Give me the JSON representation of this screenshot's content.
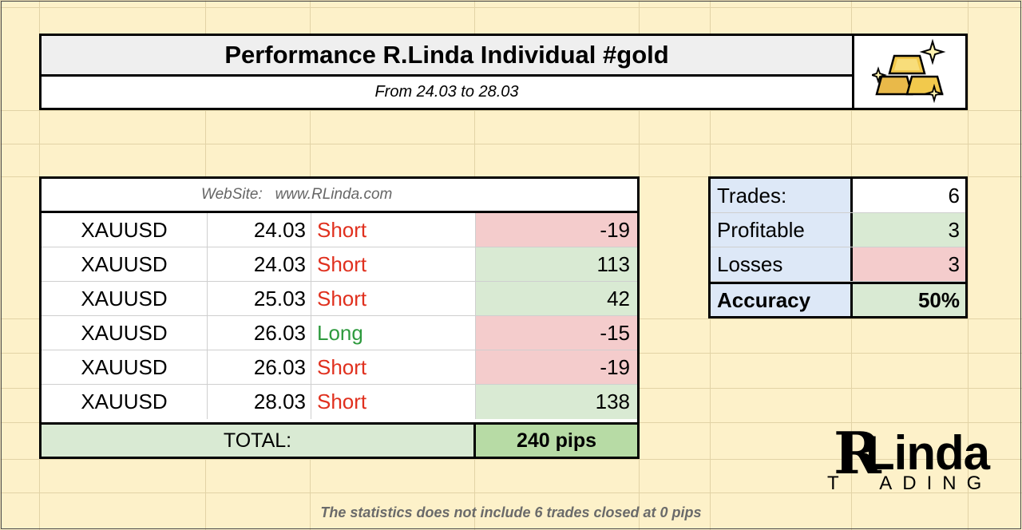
{
  "header": {
    "title": "Performance R.Linda Individual #gold",
    "subtitle": "From 24.03 to 28.03",
    "logo_icon": "gold-bars-icon"
  },
  "trades_table": {
    "website_label": "WebSite:   www.RLinda.com",
    "rows": [
      {
        "pair": "XAUUSD",
        "date": "24.03",
        "direction": "Short",
        "pips": "-19",
        "result": "loss"
      },
      {
        "pair": "XAUUSD",
        "date": "24.03",
        "direction": "Short",
        "pips": "113",
        "result": "profit"
      },
      {
        "pair": "XAUUSD",
        "date": "25.03",
        "direction": "Short",
        "pips": "42",
        "result": "profit"
      },
      {
        "pair": "XAUUSD",
        "date": "26.03",
        "direction": "Long",
        "pips": "-15",
        "result": "loss"
      },
      {
        "pair": "XAUUSD",
        "date": "26.03",
        "direction": "Short",
        "pips": "-19",
        "result": "loss"
      },
      {
        "pair": "XAUUSD",
        "date": "28.03",
        "direction": "Short",
        "pips": "138",
        "result": "profit"
      }
    ],
    "total_label": "TOTAL:",
    "total_value": "240 pips"
  },
  "stats": {
    "trades_label": "Trades:",
    "trades_value": "6",
    "profitable_label": "Profitable",
    "profitable_value": "3",
    "losses_label": "Losses",
    "losses_value": "3",
    "accuracy_label": "Accuracy",
    "accuracy_value": "50%"
  },
  "brand": {
    "initial": "R",
    "name": "Linda",
    "tagline": "T  ADING"
  },
  "footnote": "The statistics does not include 6 trades closed at 0 pips",
  "colors": {
    "background": "#fdf1c9",
    "loss": "#f4cccc",
    "profit": "#d9ead3",
    "short": "#e0301e",
    "long": "#2e9a3e",
    "stats_label": "#dde8f7"
  }
}
